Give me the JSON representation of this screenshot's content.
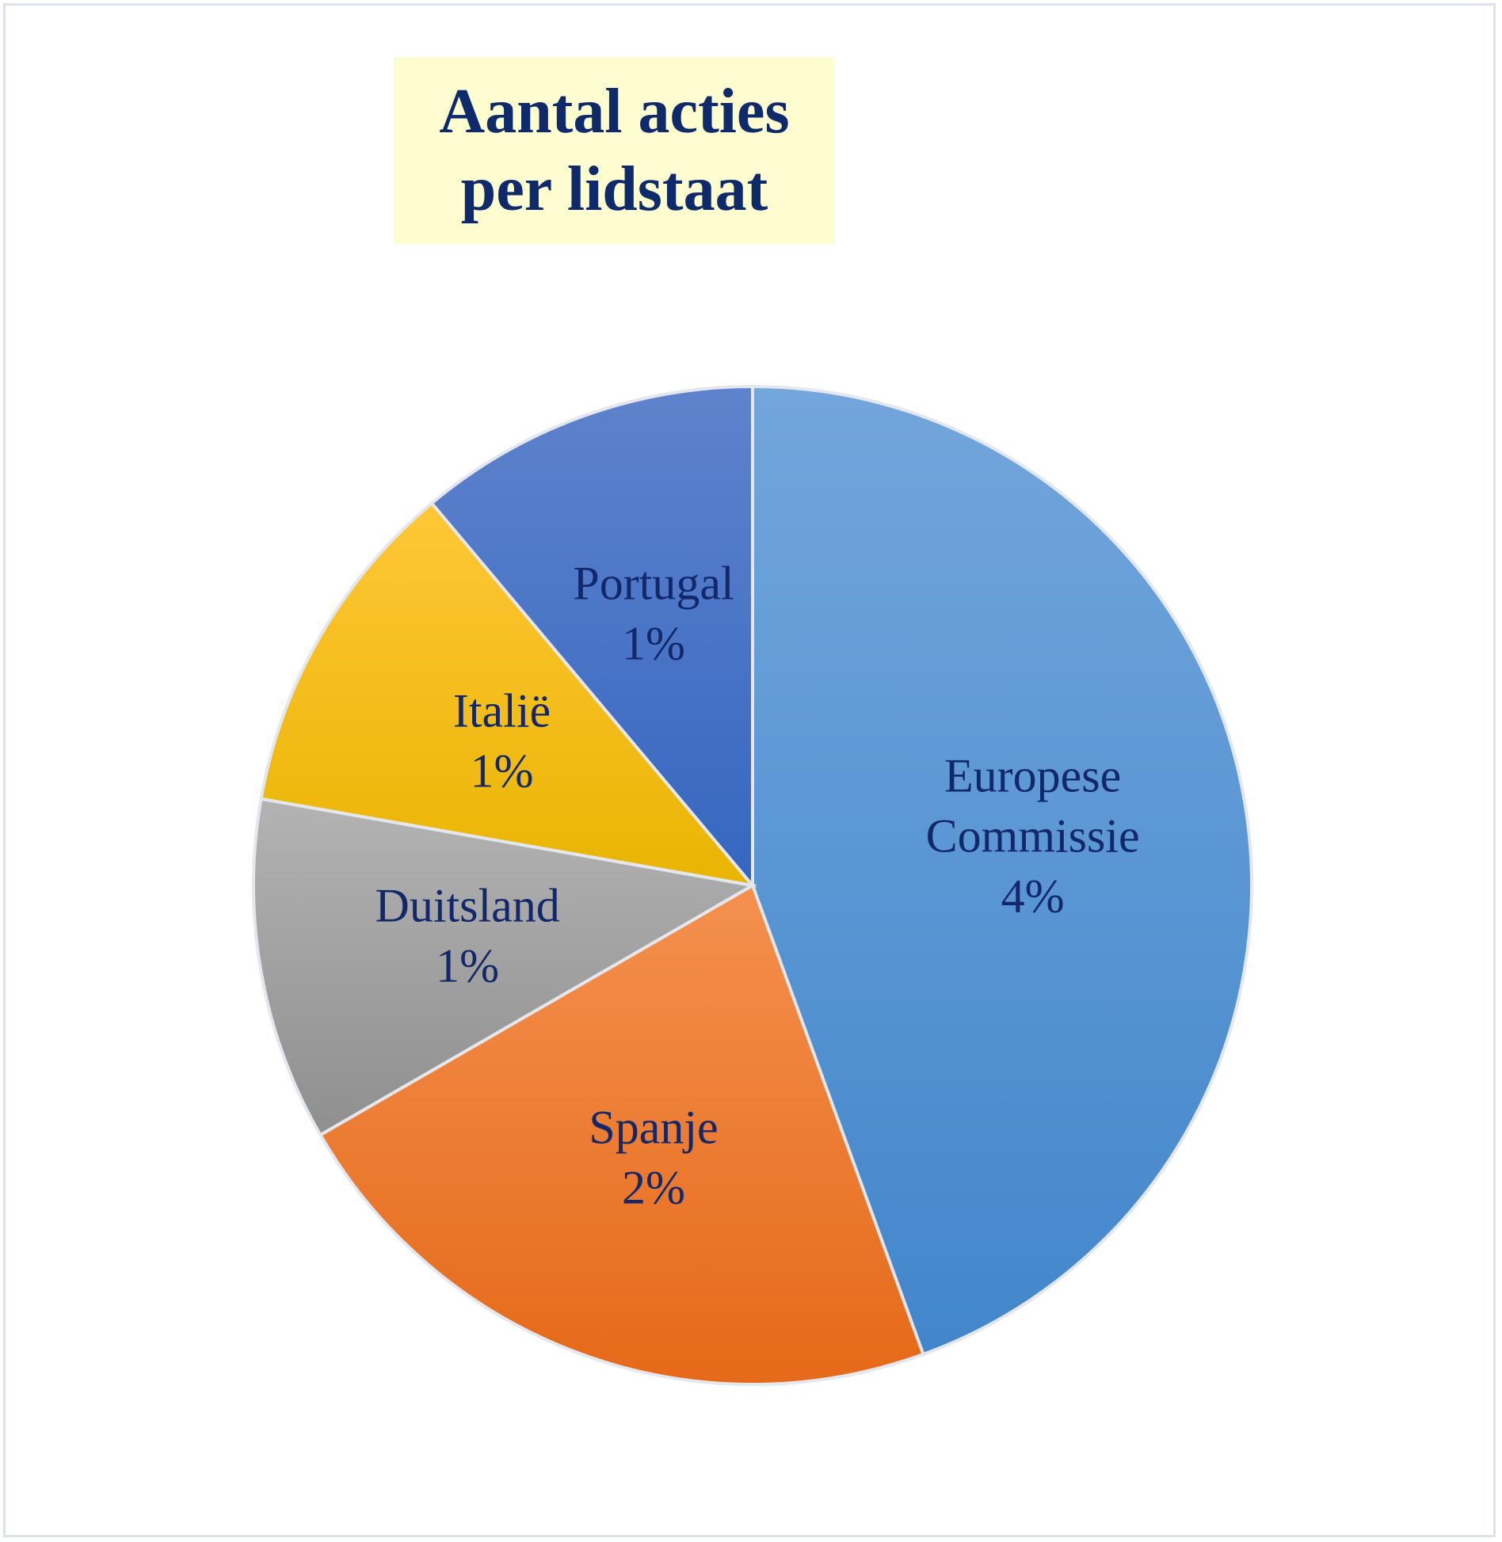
{
  "chart_data": {
    "type": "pie",
    "title_lines": [
      "Aantal acties",
      "per lidstaat"
    ],
    "slices": [
      {
        "label_lines": [
          "Europese",
          "Commissie"
        ],
        "value_label": "4%",
        "value": 4,
        "colors": [
          "#72a6dc",
          "#4286cb"
        ]
      },
      {
        "label_lines": [
          "Spanje"
        ],
        "value_label": "2%",
        "value": 2,
        "colors": [
          "#f4904f",
          "#e56918"
        ]
      },
      {
        "label_lines": [
          "Duitsland"
        ],
        "value_label": "1%",
        "value": 1,
        "colors": [
          "#b3b3b3",
          "#8f8f8f"
        ]
      },
      {
        "label_lines": [
          "Italië"
        ],
        "value_label": "1%",
        "value": 1,
        "colors": [
          "#fec737",
          "#e9b502"
        ]
      },
      {
        "label_lines": [
          "Portugal"
        ],
        "value_label": "1%",
        "value": 1,
        "colors": [
          "#5f83cc",
          "#3566c0"
        ]
      }
    ]
  }
}
